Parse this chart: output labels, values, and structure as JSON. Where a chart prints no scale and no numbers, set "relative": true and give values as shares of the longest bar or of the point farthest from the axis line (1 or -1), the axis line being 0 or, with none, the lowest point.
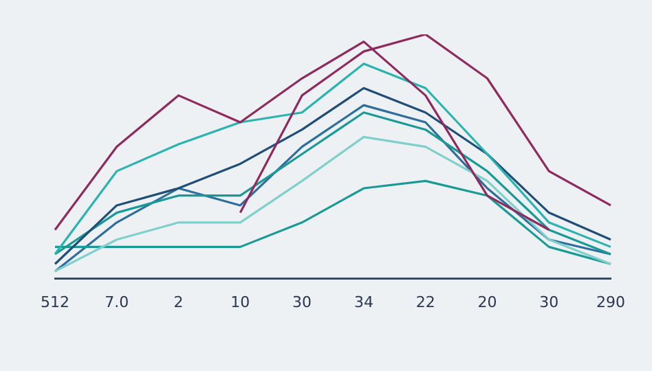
{
  "chart_data": {
    "type": "line",
    "relative": true,
    "categories": [
      "512",
      "7.0",
      "2",
      "10",
      "30",
      "34",
      "22",
      "20",
      "30",
      "290"
    ],
    "series": [
      {
        "color": "#8e2a5e",
        "values": [
          0.2,
          0.54,
          0.75,
          0.64,
          0.82,
          0.97,
          0.75,
          0.34,
          0.2,
          null
        ]
      },
      {
        "color": "#8e2a5e",
        "values": [
          null,
          null,
          null,
          0.27,
          0.75,
          0.93,
          1,
          0.82,
          0.44,
          0.3
        ]
      },
      {
        "color": "#2bb3b1",
        "values": [
          0.1,
          0.44,
          0.55,
          0.64,
          0.68,
          0.88,
          0.78,
          0.51,
          0.23,
          0.13
        ]
      },
      {
        "color": "#1f4e79",
        "values": [
          0.06,
          0.3,
          0.37,
          0.47,
          0.61,
          0.78,
          0.68,
          0.51,
          0.27,
          0.16
        ]
      },
      {
        "color": "#1a9a96",
        "values": [
          0.1,
          0.27,
          0.34,
          0.34,
          0.51,
          0.68,
          0.61,
          0.44,
          0.2,
          0.1
        ]
      },
      {
        "color": "#7fd0cc",
        "values": [
          0.03,
          0.16,
          0.23,
          0.23,
          0.4,
          0.58,
          0.54,
          0.4,
          0.16,
          0.06
        ]
      },
      {
        "color": "#1a9a96",
        "values": [
          0.13,
          0.13,
          0.13,
          0.13,
          0.23,
          0.37,
          0.4,
          0.34,
          0.13,
          0.06
        ]
      },
      {
        "color": "#2e6e9e",
        "values": [
          0.03,
          0.23,
          0.37,
          0.3,
          0.54,
          0.71,
          0.64,
          0.37,
          0.16,
          0.1
        ]
      }
    ],
    "marker": "none",
    "legend": false
  }
}
